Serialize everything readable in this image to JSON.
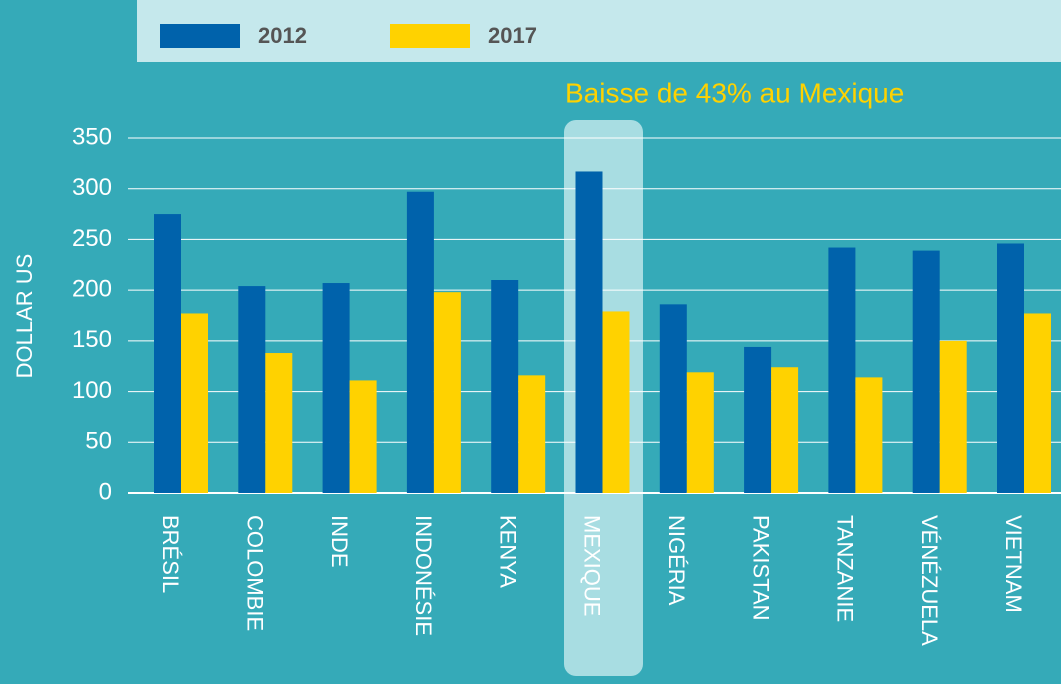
{
  "chart_data": {
    "type": "bar",
    "annotation": "Baisse de 43% au Mexique",
    "y_axis_label": "DOLLAR US",
    "categories": [
      "BRÉSIL",
      "COLOMBIE",
      "INDE",
      "INDONÉSIE",
      "KENYA",
      "MEXIQUE",
      "NIGÉRIA",
      "PAKISTAN",
      "TANZANIE",
      "VÉNÉZUELA",
      "VIETNAM"
    ],
    "series": [
      {
        "name": "2012",
        "color": "#0062ab",
        "values": [
          275,
          204,
          207,
          297,
          210,
          317,
          186,
          144,
          242,
          239,
          246
        ]
      },
      {
        "name": "2017",
        "color": "#ffd200",
        "values": [
          177,
          138,
          111,
          198,
          116,
          179,
          119,
          124,
          114,
          150,
          177
        ]
      }
    ],
    "ylim": [
      0,
      350
    ],
    "yticks": [
      0,
      50,
      100,
      150,
      200,
      250,
      300,
      350
    ],
    "grid": true
  }
}
